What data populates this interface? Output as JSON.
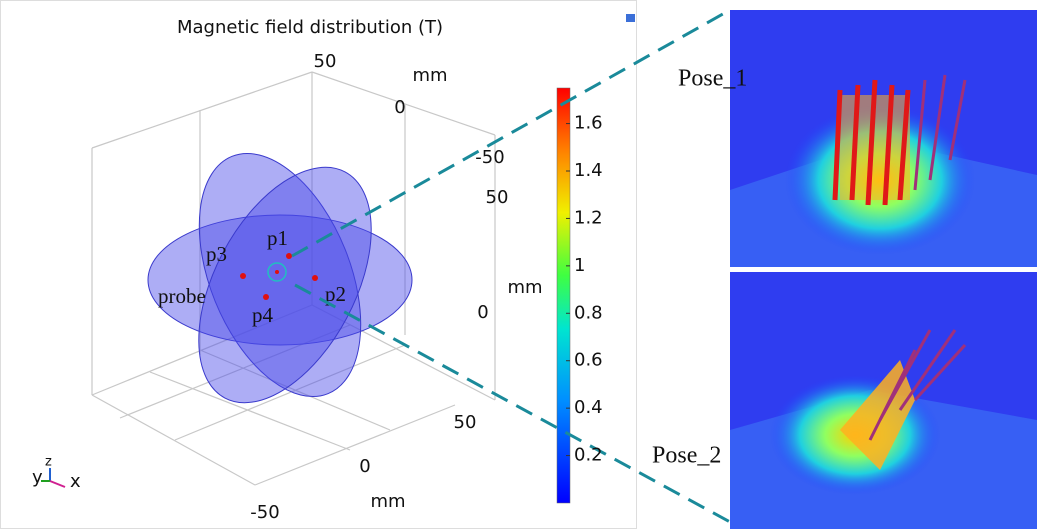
{
  "title": "Magnetic field distribution (T)",
  "axes": {
    "x": {
      "label": "mm",
      "ticks": [
        "-50",
        "0",
        "50"
      ]
    },
    "y": {
      "label": "mm",
      "ticks": [
        "50",
        "0",
        "-50"
      ]
    },
    "z": {
      "label": "mm",
      "ticks": [
        "50",
        "0"
      ]
    }
  },
  "points": [
    "p1",
    "p2",
    "p3",
    "p4",
    "probe"
  ],
  "colorbar": {
    "lim": [
      0,
      1.75
    ],
    "ticks": [
      0.2,
      0.4,
      0.6,
      0.8,
      1,
      1.2,
      1.4,
      1.6
    ]
  },
  "triad": [
    "y",
    "z",
    "x"
  ],
  "insets": [
    {
      "label": "Pose_1"
    },
    {
      "label": "Pose_2"
    }
  ]
}
